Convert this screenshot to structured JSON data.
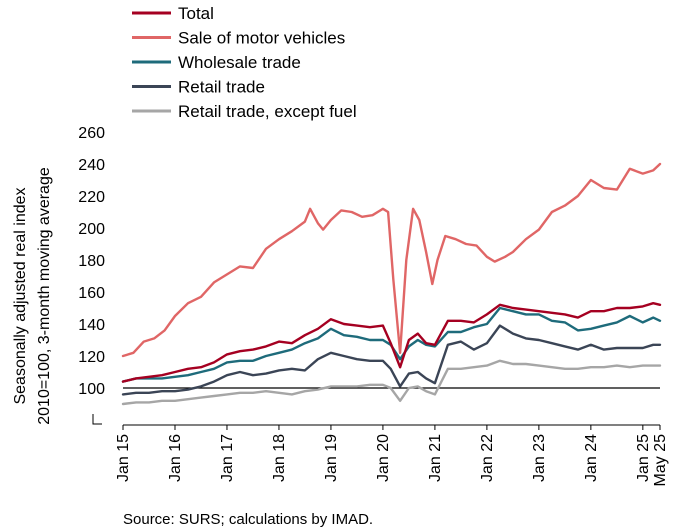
{
  "chart_data": {
    "type": "line",
    "title": "",
    "ylabel_lines": [
      "Seasonally adjusted real index",
      "2010=100, 3-month moving average"
    ],
    "xlabel": "",
    "ylim": [
      80,
      260
    ],
    "yticks": [
      100,
      120,
      140,
      160,
      180,
      200,
      220,
      240,
      260
    ],
    "xlim": [
      2015.0,
      2025.33
    ],
    "xticks": [
      {
        "label": "Jan 15",
        "x": 2015.0
      },
      {
        "label": "Jan 16",
        "x": 2016.0
      },
      {
        "label": "Jan 17",
        "x": 2017.0
      },
      {
        "label": "Jan 18",
        "x": 2018.0
      },
      {
        "label": "Jan 19",
        "x": 2019.0
      },
      {
        "label": "Jan 20",
        "x": 2020.0
      },
      {
        "label": "Jan 21",
        "x": 2021.0
      },
      {
        "label": "Jan 22",
        "x": 2022.0
      },
      {
        "label": "Jan 23",
        "x": 2023.0
      },
      {
        "label": "Jan 24",
        "x": 2024.0
      },
      {
        "label": "Jan 25",
        "x": 2025.0
      },
      {
        "label": "May 25",
        "x": 2025.33
      }
    ],
    "reference_line": 100,
    "axis_break": true,
    "legend_position": "top-left",
    "series": [
      {
        "name": "Total",
        "color": "#A50021",
        "points": [
          [
            2015.0,
            104
          ],
          [
            2015.25,
            106
          ],
          [
            2015.5,
            107
          ],
          [
            2015.75,
            108
          ],
          [
            2016.0,
            110
          ],
          [
            2016.25,
            112
          ],
          [
            2016.5,
            113
          ],
          [
            2016.75,
            116
          ],
          [
            2017.0,
            121
          ],
          [
            2017.25,
            123
          ],
          [
            2017.5,
            124
          ],
          [
            2017.75,
            126
          ],
          [
            2018.0,
            129
          ],
          [
            2018.25,
            128
          ],
          [
            2018.5,
            133
          ],
          [
            2018.75,
            137
          ],
          [
            2019.0,
            143
          ],
          [
            2019.25,
            140
          ],
          [
            2019.5,
            139
          ],
          [
            2019.75,
            138
          ],
          [
            2020.0,
            139
          ],
          [
            2020.15,
            128
          ],
          [
            2020.33,
            113
          ],
          [
            2020.5,
            130
          ],
          [
            2020.67,
            134
          ],
          [
            2020.83,
            128
          ],
          [
            2021.0,
            127
          ],
          [
            2021.25,
            142
          ],
          [
            2021.5,
            142
          ],
          [
            2021.75,
            141
          ],
          [
            2022.0,
            146
          ],
          [
            2022.25,
            152
          ],
          [
            2022.5,
            150
          ],
          [
            2022.75,
            149
          ],
          [
            2023.0,
            148
          ],
          [
            2023.25,
            147
          ],
          [
            2023.5,
            146
          ],
          [
            2023.75,
            144
          ],
          [
            2024.0,
            148
          ],
          [
            2024.25,
            148
          ],
          [
            2024.5,
            150
          ],
          [
            2024.75,
            150
          ],
          [
            2025.0,
            151
          ],
          [
            2025.2,
            153
          ],
          [
            2025.33,
            152
          ]
        ]
      },
      {
        "name": "Sale of motor vehicles",
        "color": "#E06666",
        "points": [
          [
            2015.0,
            120
          ],
          [
            2015.2,
            122
          ],
          [
            2015.4,
            129
          ],
          [
            2015.6,
            131
          ],
          [
            2015.8,
            136
          ],
          [
            2016.0,
            145
          ],
          [
            2016.25,
            153
          ],
          [
            2016.5,
            157
          ],
          [
            2016.75,
            166
          ],
          [
            2017.0,
            171
          ],
          [
            2017.25,
            176
          ],
          [
            2017.5,
            175
          ],
          [
            2017.75,
            187
          ],
          [
            2018.0,
            193
          ],
          [
            2018.25,
            198
          ],
          [
            2018.5,
            204
          ],
          [
            2018.6,
            212
          ],
          [
            2018.75,
            203
          ],
          [
            2018.85,
            199
          ],
          [
            2019.0,
            205
          ],
          [
            2019.2,
            211
          ],
          [
            2019.4,
            210
          ],
          [
            2019.6,
            207
          ],
          [
            2019.8,
            208
          ],
          [
            2020.0,
            212
          ],
          [
            2020.1,
            210
          ],
          [
            2020.2,
            168
          ],
          [
            2020.33,
            122
          ],
          [
            2020.45,
            180
          ],
          [
            2020.58,
            212
          ],
          [
            2020.7,
            205
          ],
          [
            2020.83,
            185
          ],
          [
            2020.95,
            165
          ],
          [
            2021.05,
            180
          ],
          [
            2021.2,
            195
          ],
          [
            2021.4,
            193
          ],
          [
            2021.6,
            190
          ],
          [
            2021.8,
            189
          ],
          [
            2022.0,
            182
          ],
          [
            2022.15,
            179
          ],
          [
            2022.35,
            182
          ],
          [
            2022.5,
            185
          ],
          [
            2022.75,
            193
          ],
          [
            2023.0,
            199
          ],
          [
            2023.25,
            210
          ],
          [
            2023.5,
            214
          ],
          [
            2023.75,
            220
          ],
          [
            2024.0,
            230
          ],
          [
            2024.25,
            225
          ],
          [
            2024.5,
            224
          ],
          [
            2024.75,
            237
          ],
          [
            2025.0,
            234
          ],
          [
            2025.2,
            236
          ],
          [
            2025.33,
            240
          ]
        ]
      },
      {
        "name": "Wholesale trade",
        "color": "#1E6B7B",
        "points": [
          [
            2015.0,
            104
          ],
          [
            2015.25,
            106
          ],
          [
            2015.5,
            106
          ],
          [
            2015.75,
            106
          ],
          [
            2016.0,
            107
          ],
          [
            2016.25,
            108
          ],
          [
            2016.5,
            110
          ],
          [
            2016.75,
            112
          ],
          [
            2017.0,
            116
          ],
          [
            2017.25,
            117
          ],
          [
            2017.5,
            117
          ],
          [
            2017.75,
            120
          ],
          [
            2018.0,
            122
          ],
          [
            2018.25,
            124
          ],
          [
            2018.5,
            128
          ],
          [
            2018.75,
            131
          ],
          [
            2019.0,
            137
          ],
          [
            2019.25,
            133
          ],
          [
            2019.5,
            132
          ],
          [
            2019.75,
            130
          ],
          [
            2020.0,
            130
          ],
          [
            2020.15,
            127
          ],
          [
            2020.33,
            118
          ],
          [
            2020.5,
            126
          ],
          [
            2020.67,
            130
          ],
          [
            2020.83,
            127
          ],
          [
            2021.0,
            126
          ],
          [
            2021.25,
            135
          ],
          [
            2021.5,
            135
          ],
          [
            2021.75,
            138
          ],
          [
            2022.0,
            140
          ],
          [
            2022.25,
            150
          ],
          [
            2022.5,
            148
          ],
          [
            2022.75,
            146
          ],
          [
            2023.0,
            146
          ],
          [
            2023.25,
            142
          ],
          [
            2023.5,
            141
          ],
          [
            2023.75,
            136
          ],
          [
            2024.0,
            137
          ],
          [
            2024.25,
            139
          ],
          [
            2024.5,
            141
          ],
          [
            2024.75,
            145
          ],
          [
            2025.0,
            141
          ],
          [
            2025.2,
            144
          ],
          [
            2025.33,
            142
          ]
        ]
      },
      {
        "name": "Retail trade",
        "color": "#3B4556",
        "points": [
          [
            2015.0,
            96
          ],
          [
            2015.25,
            97
          ],
          [
            2015.5,
            97
          ],
          [
            2015.75,
            98
          ],
          [
            2016.0,
            98
          ],
          [
            2016.25,
            99
          ],
          [
            2016.5,
            101
          ],
          [
            2016.75,
            104
          ],
          [
            2017.0,
            108
          ],
          [
            2017.25,
            110
          ],
          [
            2017.5,
            108
          ],
          [
            2017.75,
            109
          ],
          [
            2018.0,
            111
          ],
          [
            2018.25,
            112
          ],
          [
            2018.5,
            111
          ],
          [
            2018.75,
            118
          ],
          [
            2019.0,
            122
          ],
          [
            2019.25,
            120
          ],
          [
            2019.5,
            118
          ],
          [
            2019.75,
            117
          ],
          [
            2020.0,
            117
          ],
          [
            2020.15,
            112
          ],
          [
            2020.33,
            101
          ],
          [
            2020.5,
            109
          ],
          [
            2020.67,
            110
          ],
          [
            2020.83,
            106
          ],
          [
            2021.0,
            103
          ],
          [
            2021.25,
            127
          ],
          [
            2021.5,
            129
          ],
          [
            2021.75,
            124
          ],
          [
            2022.0,
            128
          ],
          [
            2022.25,
            139
          ],
          [
            2022.5,
            134
          ],
          [
            2022.75,
            131
          ],
          [
            2023.0,
            130
          ],
          [
            2023.25,
            128
          ],
          [
            2023.5,
            126
          ],
          [
            2023.75,
            124
          ],
          [
            2024.0,
            127
          ],
          [
            2024.25,
            124
          ],
          [
            2024.5,
            125
          ],
          [
            2024.75,
            125
          ],
          [
            2025.0,
            125
          ],
          [
            2025.2,
            127
          ],
          [
            2025.33,
            127
          ]
        ]
      },
      {
        "name": "Retail trade, except fuel",
        "color": "#A6A6A6",
        "points": [
          [
            2015.0,
            90
          ],
          [
            2015.25,
            91
          ],
          [
            2015.5,
            91
          ],
          [
            2015.75,
            92
          ],
          [
            2016.0,
            92
          ],
          [
            2016.25,
            93
          ],
          [
            2016.5,
            94
          ],
          [
            2016.75,
            95
          ],
          [
            2017.0,
            96
          ],
          [
            2017.25,
            97
          ],
          [
            2017.5,
            97
          ],
          [
            2017.75,
            98
          ],
          [
            2018.0,
            97
          ],
          [
            2018.25,
            96
          ],
          [
            2018.5,
            98
          ],
          [
            2018.75,
            99
          ],
          [
            2019.0,
            101
          ],
          [
            2019.25,
            101
          ],
          [
            2019.5,
            101
          ],
          [
            2019.75,
            102
          ],
          [
            2020.0,
            102
          ],
          [
            2020.15,
            100
          ],
          [
            2020.33,
            92
          ],
          [
            2020.5,
            100
          ],
          [
            2020.67,
            101
          ],
          [
            2020.83,
            98
          ],
          [
            2021.0,
            96
          ],
          [
            2021.25,
            112
          ],
          [
            2021.5,
            112
          ],
          [
            2021.75,
            113
          ],
          [
            2022.0,
            114
          ],
          [
            2022.25,
            117
          ],
          [
            2022.5,
            115
          ],
          [
            2022.75,
            115
          ],
          [
            2023.0,
            114
          ],
          [
            2023.25,
            113
          ],
          [
            2023.5,
            112
          ],
          [
            2023.75,
            112
          ],
          [
            2024.0,
            113
          ],
          [
            2024.25,
            113
          ],
          [
            2024.5,
            114
          ],
          [
            2024.75,
            113
          ],
          [
            2025.0,
            114
          ],
          [
            2025.2,
            114
          ],
          [
            2025.33,
            114
          ]
        ]
      }
    ],
    "source": "Source: SURS; calculations by IMAD."
  }
}
